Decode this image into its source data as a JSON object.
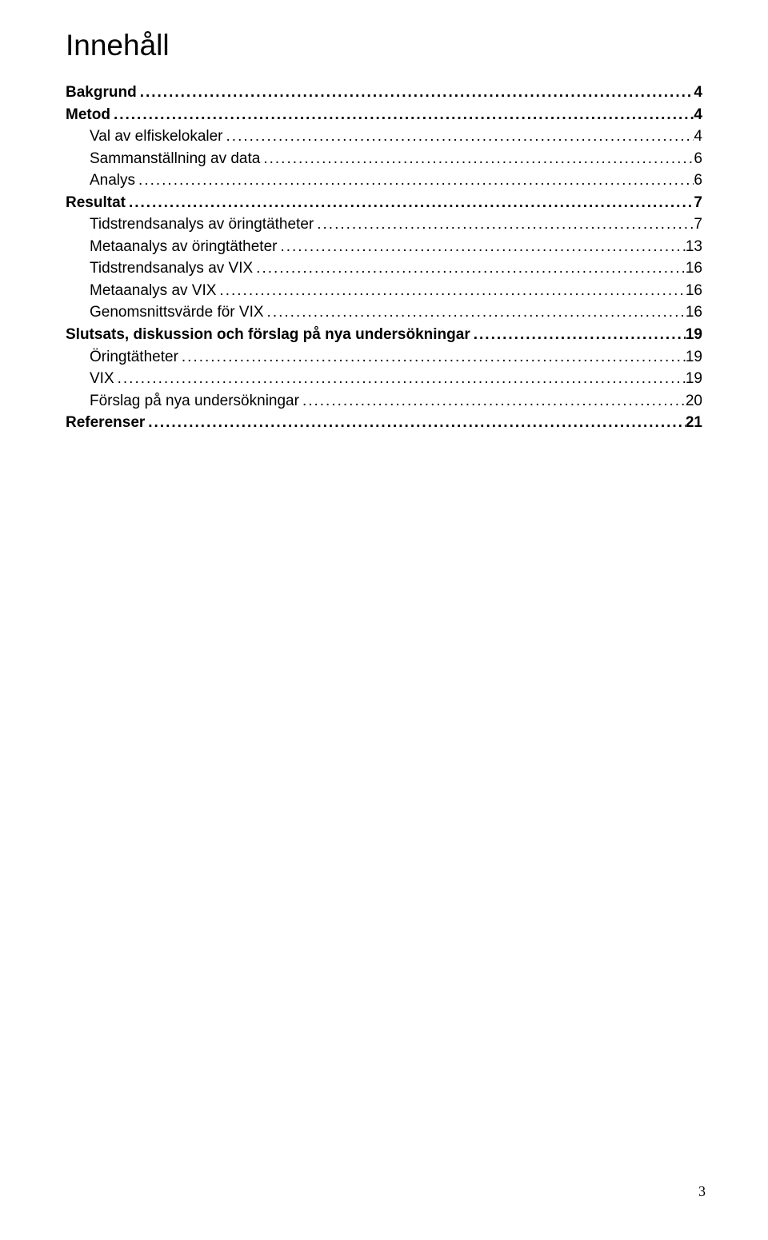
{
  "title": "Innehåll",
  "toc": [
    {
      "label": "Bakgrund",
      "page": "4",
      "bold": true,
      "indent": 0
    },
    {
      "label": "Metod",
      "page": "4",
      "bold": true,
      "indent": 0
    },
    {
      "label": "Val av elfiskelokaler",
      "page": "4",
      "bold": false,
      "indent": 1
    },
    {
      "label": "Sammanställning av data",
      "page": "6",
      "bold": false,
      "indent": 1
    },
    {
      "label": "Analys",
      "page": "6",
      "bold": false,
      "indent": 1
    },
    {
      "label": "Resultat",
      "page": "7",
      "bold": true,
      "indent": 0
    },
    {
      "label": "Tidstrendsanalys av öringtätheter",
      "page": "7",
      "bold": false,
      "indent": 1
    },
    {
      "label": "Metaanalys av öringtätheter",
      "page": "13",
      "bold": false,
      "indent": 1
    },
    {
      "label": "Tidstrendsanalys av VIX",
      "page": "16",
      "bold": false,
      "indent": 1
    },
    {
      "label": "Metaanalys av VIX",
      "page": "16",
      "bold": false,
      "indent": 1
    },
    {
      "label": "Genomsnittsvärde för VIX",
      "page": "16",
      "bold": false,
      "indent": 1
    },
    {
      "label": "Slutsats, diskussion och förslag på nya undersökningar",
      "page": "19",
      "bold": true,
      "indent": 0
    },
    {
      "label": "Öringtätheter",
      "page": "19",
      "bold": false,
      "indent": 1
    },
    {
      "label": "VIX",
      "page": "19",
      "bold": false,
      "indent": 1
    },
    {
      "label": "Förslag på nya undersökningar",
      "page": "20",
      "bold": false,
      "indent": 1
    },
    {
      "label": "Referenser",
      "page": "21",
      "bold": true,
      "indent": 0
    }
  ],
  "footer_page": "3"
}
